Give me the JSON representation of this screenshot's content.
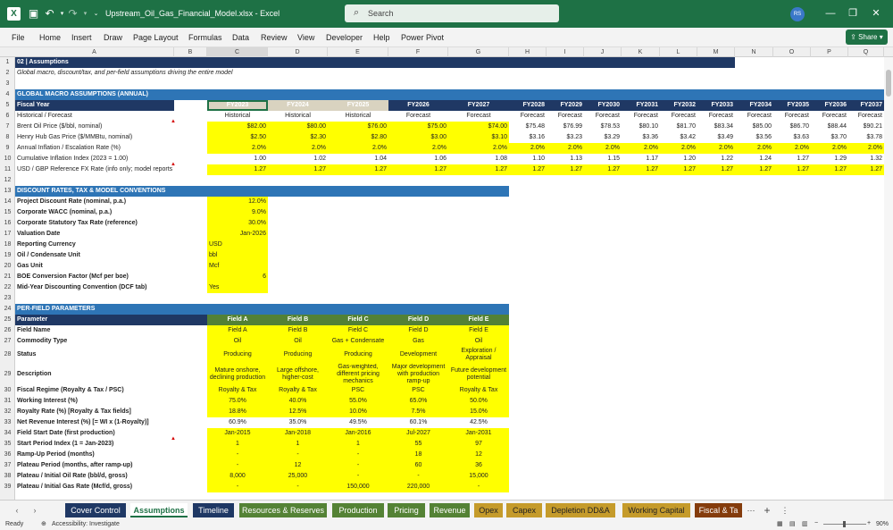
{
  "window": {
    "title": "Upstream_Oil_Gas_Financial_Model.xlsx  -  Excel",
    "search_placeholder": "Search",
    "avatar": "RS",
    "app_icon": "X",
    "icons": {
      "save": "save-icon",
      "undo": "undo-icon",
      "redo": "redo-icon",
      "minimize": "minimize-icon",
      "maximize": "maximize-icon",
      "close": "close-icon"
    }
  },
  "menu": {
    "items": [
      "File",
      "Home",
      "Insert",
      "Draw",
      "Page Layout",
      "Formulas",
      "Data",
      "Review",
      "View",
      "Developer",
      "Help",
      "Power Pivot"
    ],
    "share": "Share"
  },
  "colors": {
    "excel_green": "#1e7145",
    "section_blue": "#2e75b6",
    "title_navy": "#1f3864",
    "input_yellow": "#ffff00",
    "field_green": "#538135",
    "historical_tan": "#d9d3c0"
  },
  "columns": [
    "A",
    "B",
    "C",
    "D",
    "E",
    "F",
    "G",
    "H",
    "I",
    "J",
    "K",
    "L",
    "M",
    "N",
    "O",
    "P",
    "Q"
  ],
  "rows": [
    "1",
    "2",
    "3",
    "4",
    "5",
    "6",
    "7",
    "8",
    "9",
    "10",
    "11",
    "12",
    "13",
    "14",
    "15",
    "16",
    "17",
    "18",
    "19",
    "20",
    "21",
    "22",
    "23",
    "24",
    "25",
    "26",
    "27",
    "28",
    "29",
    "30",
    "31",
    "32",
    "33",
    "34",
    "35",
    "36",
    "37",
    "38",
    "39"
  ],
  "sheet": {
    "title": "02  |  Assumptions",
    "subtitle": "Global macro, discount/tax, and per-field assumptions driving the entire model",
    "macro_header": "GLOBAL MACRO ASSUMPTIONS (ANNUAL)",
    "fiscal_label": "Fiscal Year",
    "years": [
      "FY2023",
      "FY2024",
      "FY2025",
      "FY2026",
      "FY2027",
      "FY2028",
      "FY2029",
      "FY2030",
      "FY2031",
      "FY2032",
      "FY2033",
      "FY2034",
      "FY2035",
      "FY2036",
      "FY2037"
    ],
    "macro_rows": [
      {
        "label": "Historical / Forecast",
        "values": [
          "Historical",
          "Historical",
          "Historical",
          "Forecast",
          "Forecast",
          "Forecast",
          "Forecast",
          "Forecast",
          "Forecast",
          "Forecast",
          "Forecast",
          "Forecast",
          "Forecast",
          "Forecast",
          "Forecast"
        ]
      },
      {
        "label": "Brent Oil Price ($/bbl, nominal)",
        "values": [
          "$82.00",
          "$80.00",
          "$76.00",
          "$75.00",
          "$74.00",
          "$75.48",
          "$76.99",
          "$78.53",
          "$80.10",
          "$81.70",
          "$83.34",
          "$85.00",
          "$86.70",
          "$88.44",
          "$90.21"
        ]
      },
      {
        "label": "Henry Hub Gas Price ($/MMBtu, nominal)",
        "values": [
          "$2.50",
          "$2.30",
          "$2.80",
          "$3.00",
          "$3.10",
          "$3.16",
          "$3.23",
          "$3.29",
          "$3.36",
          "$3.42",
          "$3.49",
          "$3.56",
          "$3.63",
          "$3.70",
          "$3.78"
        ]
      },
      {
        "label": "Annual Inflation / Escalation Rate (%)",
        "values": [
          "2.0%",
          "2.0%",
          "2.0%",
          "2.0%",
          "2.0%",
          "2.0%",
          "2.0%",
          "2.0%",
          "2.0%",
          "2.0%",
          "2.0%",
          "2.0%",
          "2.0%",
          "2.0%",
          "2.0%"
        ]
      },
      {
        "label": "Cumulative Inflation Index (2023 = 1.00)",
        "values": [
          "1.00",
          "1.02",
          "1.04",
          "1.06",
          "1.08",
          "1.10",
          "1.13",
          "1.15",
          "1.17",
          "1.20",
          "1.22",
          "1.24",
          "1.27",
          "1.29",
          "1.32"
        ]
      },
      {
        "label": "USD / GBP Reference FX Rate (info only; model reports in USD)",
        "values": [
          "1.27",
          "1.27",
          "1.27",
          "1.27",
          "1.27",
          "1.27",
          "1.27",
          "1.27",
          "1.27",
          "1.27",
          "1.27",
          "1.27",
          "1.27",
          "1.27",
          "1.27"
        ]
      }
    ],
    "discount_header": "DISCOUNT RATES, TAX & MODEL CONVENTIONS",
    "discount_rows": [
      {
        "label": "Project Discount Rate (nominal, p.a.)",
        "value": "12.0%"
      },
      {
        "label": "Corporate WACC (nominal, p.a.)",
        "value": "9.0%"
      },
      {
        "label": "Corporate Statutory Tax Rate (reference)",
        "value": "30.0%"
      },
      {
        "label": "Valuation Date",
        "value": "Jan-2026"
      },
      {
        "label": "Reporting Currency",
        "value": "USD"
      },
      {
        "label": "Oil / Condensate Unit",
        "value": "bbl"
      },
      {
        "label": "Gas Unit",
        "value": "Mcf"
      },
      {
        "label": "BOE Conversion Factor (Mcf per boe)",
        "value": "6"
      },
      {
        "label": "Mid-Year Discounting Convention (DCF tab)",
        "value": "Yes"
      }
    ],
    "perfield_header": "PER-FIELD PARAMETERS",
    "param_label": "Parameter",
    "fields": [
      "Field A",
      "Field B",
      "Field C",
      "Field D",
      "Field E"
    ],
    "field_rows": [
      {
        "label": "Field Name",
        "values": [
          "Field A",
          "Field B",
          "Field C",
          "Field D",
          "Field E"
        ]
      },
      {
        "label": "Commodity Type",
        "values": [
          "Oil",
          "Oil",
          "Gas + Condensate",
          "Gas",
          "Oil"
        ]
      },
      {
        "label": "Status",
        "values": [
          "Producing",
          "Producing",
          "Producing",
          "Development",
          "Exploration / Appraisal"
        ]
      },
      {
        "label": "Description",
        "values": [
          "Mature onshore, declining production",
          "Large offshore, higher-cost",
          "Gas-weighted, different pricing mechanics",
          "Major development with production ramp-up",
          "Future development potential"
        ]
      },
      {
        "label": "Fiscal Regime (Royalty & Tax / PSC)",
        "values": [
          "Royalty & Tax",
          "Royalty & Tax",
          "PSC",
          "PSC",
          "Royalty & Tax"
        ]
      },
      {
        "label": "Working Interest (%)",
        "values": [
          "75.0%",
          "40.0%",
          "55.0%",
          "65.0%",
          "50.0%"
        ]
      },
      {
        "label": "Royalty Rate (%) [Royalty & Tax fields]",
        "values": [
          "18.8%",
          "12.5%",
          "10.0%",
          "7.5%",
          "15.0%"
        ]
      },
      {
        "label": "Net Revenue Interest (%) [= WI x (1-Royalty)]",
        "values": [
          "60.9%",
          "35.0%",
          "49.5%",
          "60.1%",
          "42.5%"
        ]
      },
      {
        "label": "Field Start Date (first production)",
        "values": [
          "Jan-2015",
          "Jan-2018",
          "Jan-2016",
          "Jul-2027",
          "Jan-2031"
        ]
      },
      {
        "label": "Start Period Index (1 = Jan-2023)",
        "values": [
          "1",
          "1",
          "1",
          "55",
          "97"
        ]
      },
      {
        "label": "Ramp-Up Period (months)",
        "values": [
          "-",
          "-",
          "-",
          "18",
          "12"
        ]
      },
      {
        "label": "Plateau Period (months, after ramp-up)",
        "values": [
          "-",
          "12",
          "-",
          "60",
          "36"
        ]
      },
      {
        "label": "Plateau / Initial Oil Rate (bbl/d, gross)",
        "values": [
          "8,000",
          "25,000",
          "-",
          "-",
          "15,000"
        ]
      },
      {
        "label": "Plateau / Initial Gas Rate (Mcf/d, gross)",
        "values": [
          "-",
          "-",
          "150,000",
          "220,000",
          "-"
        ]
      }
    ]
  },
  "tabs": [
    "Cover Control",
    "Assumptions",
    "Timeline",
    "Resources & Reserves",
    "Production",
    "Pricing",
    "Revenue",
    "Opex",
    "Capex",
    "Depletion DD&A",
    "Working Capital",
    "Fiscal & Ta"
  ],
  "status": {
    "ready": "Ready",
    "accessibility": "Accessibility: Investigate",
    "zoom": "90%"
  }
}
